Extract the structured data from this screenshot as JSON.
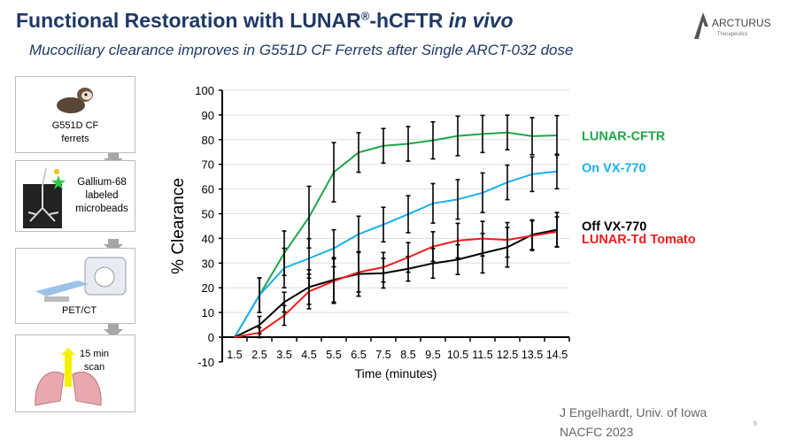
{
  "header": {
    "title_pre": "Functional Restoration with LUNAR",
    "title_sup": "®",
    "title_mid": "-hCFTR ",
    "title_italic": "in vivo",
    "subtitle": "Mucociliary clearance improves in G551D CF Ferrets after Single ARCT-032 dose",
    "logo_text": "ARCTURUS",
    "logo_sub": "Therapeutics"
  },
  "workflow": [
    {
      "label_1": "G551D CF",
      "label_2": "ferrets",
      "icon": "ferret-icon"
    },
    {
      "label_1": "Gallium-68",
      "label_2": "labeled",
      "label_3": "microbeads",
      "icon": "lung-xray-icon"
    },
    {
      "label_1": "PET/CT",
      "icon": "pet-ct-scanner-icon"
    },
    {
      "label_1": "15 min",
      "label_2": "scan",
      "icon": "lungs-icon"
    }
  ],
  "footer": {
    "credit_1": "J Engelhardt, Univ. of Iowa",
    "credit_2": "NACFC 2023",
    "page": "5"
  },
  "chart_data": {
    "type": "line",
    "xlabel": "Time (minutes)",
    "ylabel": "% Clearance",
    "ylim": [
      -10,
      100
    ],
    "yticks": [
      -10,
      0,
      10,
      20,
      30,
      40,
      50,
      60,
      70,
      80,
      90,
      100
    ],
    "grid": true,
    "legend": "right",
    "categories": [
      "1.5",
      "2.5",
      "3.5",
      "4.5",
      "5.5",
      "6.5",
      "7.5",
      "8.5",
      "9.5",
      "10.5",
      "11.5",
      "12.5",
      "13.5",
      "14.5"
    ],
    "series": [
      {
        "name": "LUNAR-CFTR",
        "color": "#1fa64a",
        "values": [
          0,
          17,
          34,
          48.6,
          66.8,
          74.8,
          77.5,
          78.3,
          79.7,
          81.5,
          82.3,
          82.9,
          81.4,
          81.7
        ],
        "errors": [
          0,
          7,
          9,
          12.5,
          12,
          8,
          7,
          7,
          7.5,
          8,
          7.5,
          7,
          7.5,
          8
        ]
      },
      {
        "name": "On VX-770",
        "color": "#1ab0ee",
        "values": [
          0,
          17,
          28,
          31.9,
          36,
          41.7,
          45.6,
          49.8,
          54.2,
          55.8,
          58.5,
          62.7,
          66,
          67.1
        ],
        "errors": [
          0,
          7,
          8,
          8,
          7.5,
          7.3,
          7,
          7.5,
          8,
          8,
          8,
          7,
          7,
          7
        ]
      },
      {
        "name": "Off VX-770",
        "color": "#000000",
        "values": [
          0,
          4.9,
          14.2,
          20.3,
          23.2,
          25.6,
          25.9,
          27.7,
          29.9,
          31.4,
          34,
          36.4,
          41.5,
          43.5
        ],
        "errors": [
          0,
          3.5,
          4,
          7,
          9,
          9,
          6,
          5,
          6,
          6,
          8,
          8,
          6,
          7
        ]
      },
      {
        "name": "LUNAR-Td Tomato",
        "color": "#ee1c1c",
        "values": [
          0,
          1.8,
          8.8,
          18.5,
          22.7,
          26.3,
          28.3,
          32.3,
          36.7,
          39.1,
          39.9,
          39.4,
          41.1,
          42.7
        ],
        "errors": [
          0,
          2,
          4,
          7,
          9,
          8,
          6,
          6,
          6,
          7,
          7,
          7,
          6,
          6
        ]
      }
    ]
  }
}
